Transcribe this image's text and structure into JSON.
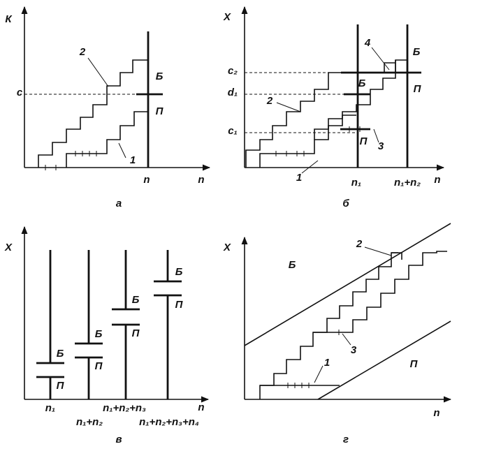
{
  "panels": [
    {
      "caption": "а",
      "y_label": "К",
      "x_labels": [
        "n",
        "n"
      ],
      "level": "c",
      "zones": [
        "Б",
        "П"
      ],
      "curves": [
        "2",
        "1"
      ]
    },
    {
      "caption": "б",
      "y_label": "X",
      "x_labels": [
        "n₁",
        "n₁+n₂",
        "n"
      ],
      "levels": [
        "c₂",
        "d₁",
        "c₁"
      ],
      "zones": [
        "Б",
        "П",
        "Б",
        "П"
      ],
      "curves": [
        "4",
        "2",
        "3",
        "1"
      ]
    },
    {
      "caption": "в",
      "y_label": "X",
      "x_labels": [
        "n₁",
        "n₁+n₂",
        "n₁+n₂+n₃",
        "n₁+n₂+n₃+n₄",
        "n"
      ],
      "zones": [
        "Б",
        "П",
        "Б",
        "П",
        "Б",
        "П",
        "Б",
        "П"
      ]
    },
    {
      "caption": "г",
      "y_label": "X",
      "x_labels": [
        "n"
      ],
      "zones": [
        "Б",
        "П"
      ],
      "curves": [
        "2",
        "3",
        "1"
      ]
    }
  ]
}
